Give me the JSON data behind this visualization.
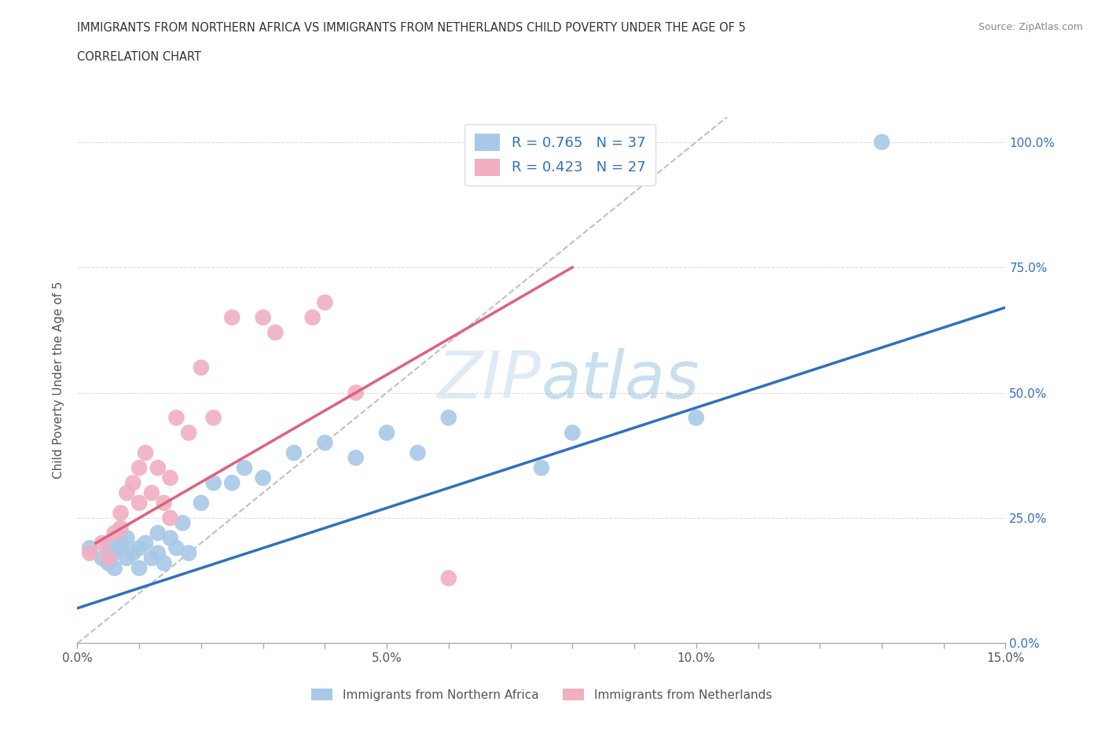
{
  "title_line1": "IMMIGRANTS FROM NORTHERN AFRICA VS IMMIGRANTS FROM NETHERLANDS CHILD POVERTY UNDER THE AGE OF 5",
  "title_line2": "CORRELATION CHART",
  "source": "Source: ZipAtlas.com",
  "ylabel": "Child Poverty Under the Age of 5",
  "xlim": [
    0.0,
    0.15
  ],
  "ylim": [
    0.0,
    1.05
  ],
  "yticks": [
    0.0,
    0.25,
    0.5,
    0.75,
    1.0
  ],
  "ytick_labels": [
    "0.0%",
    "25.0%",
    "50.0%",
    "75.0%",
    "100.0%"
  ],
  "xticks": [
    0.0,
    0.01,
    0.02,
    0.03,
    0.04,
    0.05,
    0.06,
    0.07,
    0.08,
    0.09,
    0.1,
    0.11,
    0.12,
    0.13,
    0.14,
    0.15
  ],
  "xtick_labels_show": [
    "0.0%",
    "",
    "",
    "",
    "",
    "5.0%",
    "",
    "",
    "",
    "",
    "10.0%",
    "",
    "",
    "",
    "",
    "15.0%"
  ],
  "blue_R": 0.765,
  "blue_N": 37,
  "pink_R": 0.423,
  "pink_N": 27,
  "blue_color": "#a8c8e8",
  "pink_color": "#f0b0c0",
  "blue_line_color": "#3070c0",
  "pink_line_color": "#e06080",
  "diag_line_color": "#c0c0c0",
  "legend_text_color": "#3070c0",
  "watermark_color": "#c8dff0",
  "blue_scatter_x": [
    0.002,
    0.004,
    0.005,
    0.005,
    0.006,
    0.006,
    0.007,
    0.007,
    0.008,
    0.008,
    0.009,
    0.01,
    0.01,
    0.011,
    0.012,
    0.013,
    0.013,
    0.014,
    0.015,
    0.016,
    0.017,
    0.018,
    0.02,
    0.022,
    0.025,
    0.027,
    0.03,
    0.035,
    0.04,
    0.045,
    0.05,
    0.055,
    0.06,
    0.075,
    0.08,
    0.1,
    0.13
  ],
  "blue_scatter_y": [
    0.19,
    0.17,
    0.16,
    0.2,
    0.18,
    0.15,
    0.19,
    0.2,
    0.17,
    0.21,
    0.18,
    0.15,
    0.19,
    0.2,
    0.17,
    0.22,
    0.18,
    0.16,
    0.21,
    0.19,
    0.24,
    0.18,
    0.28,
    0.32,
    0.32,
    0.35,
    0.33,
    0.38,
    0.4,
    0.37,
    0.42,
    0.38,
    0.45,
    0.35,
    0.42,
    0.45,
    1.0
  ],
  "pink_scatter_x": [
    0.002,
    0.004,
    0.005,
    0.006,
    0.007,
    0.007,
    0.008,
    0.009,
    0.01,
    0.01,
    0.011,
    0.012,
    0.013,
    0.014,
    0.015,
    0.015,
    0.016,
    0.018,
    0.02,
    0.022,
    0.025,
    0.03,
    0.032,
    0.038,
    0.04,
    0.045,
    0.06
  ],
  "pink_scatter_y": [
    0.18,
    0.2,
    0.17,
    0.22,
    0.23,
    0.26,
    0.3,
    0.32,
    0.35,
    0.28,
    0.38,
    0.3,
    0.35,
    0.28,
    0.33,
    0.25,
    0.45,
    0.42,
    0.55,
    0.45,
    0.65,
    0.65,
    0.62,
    0.65,
    0.68,
    0.5,
    0.13
  ],
  "blue_line_x": [
    0.0,
    0.15
  ],
  "blue_line_y": [
    0.07,
    0.67
  ],
  "pink_line_x": [
    0.003,
    0.08
  ],
  "pink_line_y": [
    0.2,
    0.75
  ],
  "diag_line_x": [
    0.0,
    0.105
  ],
  "diag_line_y": [
    0.0,
    1.05
  ]
}
